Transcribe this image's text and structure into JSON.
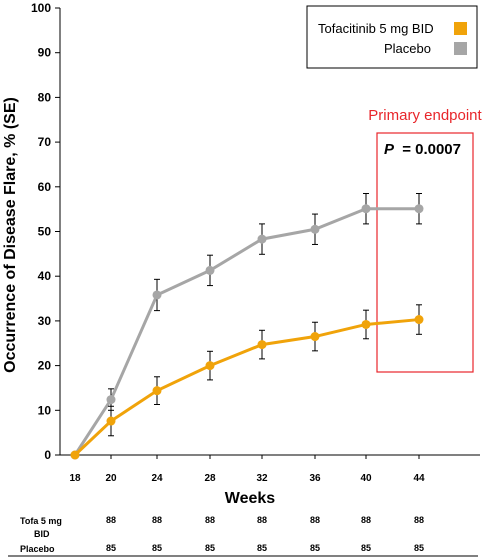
{
  "chart_data": {
    "type": "line",
    "xlabel": "Weeks",
    "ylabel": "Occurrence of Disease Flare, % (SE)",
    "ylim": [
      0,
      100
    ],
    "yticks": [
      0,
      10,
      20,
      30,
      40,
      50,
      60,
      70,
      80,
      90,
      100
    ],
    "x": [
      18,
      20,
      24,
      28,
      32,
      36,
      40,
      44
    ],
    "series": [
      {
        "name": "Tofacitinib 5 mg BID",
        "color": "#f0a30a",
        "values": [
          0,
          7.6,
          14.4,
          20.0,
          24.7,
          26.5,
          29.2,
          30.3
        ],
        "se": [
          0,
          3.3,
          3.1,
          3.2,
          3.2,
          3.2,
          3.2,
          3.3
        ]
      },
      {
        "name": "Placebo",
        "color": "#a6a6a6",
        "values": [
          0,
          12.4,
          35.8,
          41.3,
          48.3,
          50.5,
          55.1,
          55.1
        ],
        "se": [
          0,
          2.4,
          3.5,
          3.4,
          3.4,
          3.4,
          3.4,
          3.4
        ]
      }
    ],
    "legend_position": "top-right",
    "annotation": {
      "label": "Primary endpoint",
      "p_label": "P",
      "p_value": "= 0.0007",
      "color": "#e8262b"
    },
    "at_risk": [
      {
        "label_line1": "Tofa 5 mg",
        "label_line2": "BID",
        "values": [
          "88",
          "88",
          "88",
          "88",
          "88",
          "88",
          "88"
        ]
      },
      {
        "label_line1": "Placebo",
        "label_line2": "",
        "values": [
          "85",
          "85",
          "85",
          "85",
          "85",
          "85",
          "85"
        ]
      }
    ]
  }
}
